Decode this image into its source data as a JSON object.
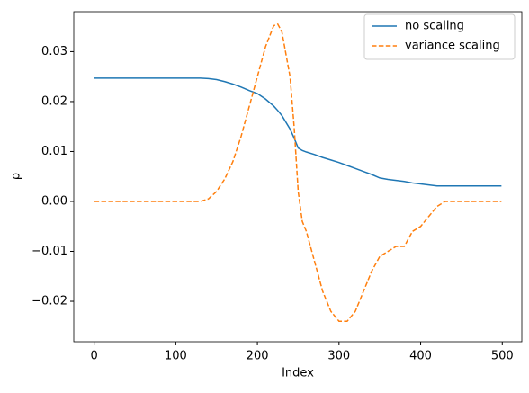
{
  "chart_data": {
    "type": "line",
    "xlabel": "Index",
    "ylabel": "ρ",
    "x": [
      0,
      10,
      20,
      30,
      40,
      50,
      60,
      70,
      80,
      90,
      100,
      110,
      120,
      130,
      140,
      150,
      160,
      170,
      180,
      190,
      200,
      210,
      220,
      225,
      230,
      240,
      245,
      250,
      255,
      260,
      270,
      280,
      290,
      300,
      310,
      320,
      330,
      340,
      350,
      360,
      370,
      380,
      390,
      400,
      410,
      420,
      430,
      440,
      450,
      460,
      470,
      480,
      490,
      499
    ],
    "series": [
      {
        "name": "no scaling",
        "color": "#1f77b4",
        "dash": "solid",
        "values": [
          0.0247,
          0.0247,
          0.0247,
          0.0247,
          0.0247,
          0.0247,
          0.0247,
          0.0247,
          0.0247,
          0.0247,
          0.0247,
          0.0247,
          0.0247,
          0.0247,
          0.0246,
          0.0244,
          0.024,
          0.0235,
          0.0229,
          0.0222,
          0.0216,
          0.0205,
          0.0191,
          0.0182,
          0.0172,
          0.0145,
          0.0127,
          0.0107,
          0.0102,
          0.0099,
          0.0094,
          0.0088,
          0.0083,
          0.0078,
          0.0072,
          0.0066,
          0.006,
          0.0054,
          0.0047,
          0.0044,
          0.0042,
          0.004,
          0.0037,
          0.0035,
          0.0033,
          0.0031,
          0.0031,
          0.0031,
          0.0031,
          0.0031,
          0.0031,
          0.0031,
          0.0031,
          0.0031
        ]
      },
      {
        "name": "variance scaling",
        "color": "#ff7f0e",
        "dash": "dashed",
        "values": [
          0,
          0,
          0,
          0,
          0,
          0,
          0,
          0,
          0,
          0,
          0,
          0,
          0,
          0,
          0.0005,
          0.002,
          0.0045,
          0.008,
          0.013,
          0.019,
          0.025,
          0.031,
          0.0352,
          0.0355,
          0.034,
          0.025,
          0.015,
          0.002,
          -0.004,
          -0.006,
          -0.012,
          -0.018,
          -0.022,
          -0.024,
          -0.024,
          -0.022,
          -0.018,
          -0.014,
          -0.011,
          -0.01,
          -0.009,
          -0.009,
          -0.006,
          -0.005,
          -0.003,
          -0.001,
          0,
          0,
          0,
          0,
          0,
          0,
          0,
          0
        ]
      }
    ],
    "xlim": [
      -24.95,
      523.95
    ],
    "ylim": [
      -0.0281,
      0.038
    ],
    "xticks": [
      0,
      100,
      200,
      300,
      400,
      500
    ],
    "yticks": [
      {
        "value": -0.02,
        "label": "−0.02"
      },
      {
        "value": -0.01,
        "label": "−0.01"
      },
      {
        "value": 0,
        "label": "0.00"
      },
      {
        "value": 0.01,
        "label": "0.01"
      },
      {
        "value": 0.02,
        "label": "0.02"
      },
      {
        "value": 0.03,
        "label": "0.03"
      }
    ],
    "legend": "upper right",
    "grid": false
  }
}
